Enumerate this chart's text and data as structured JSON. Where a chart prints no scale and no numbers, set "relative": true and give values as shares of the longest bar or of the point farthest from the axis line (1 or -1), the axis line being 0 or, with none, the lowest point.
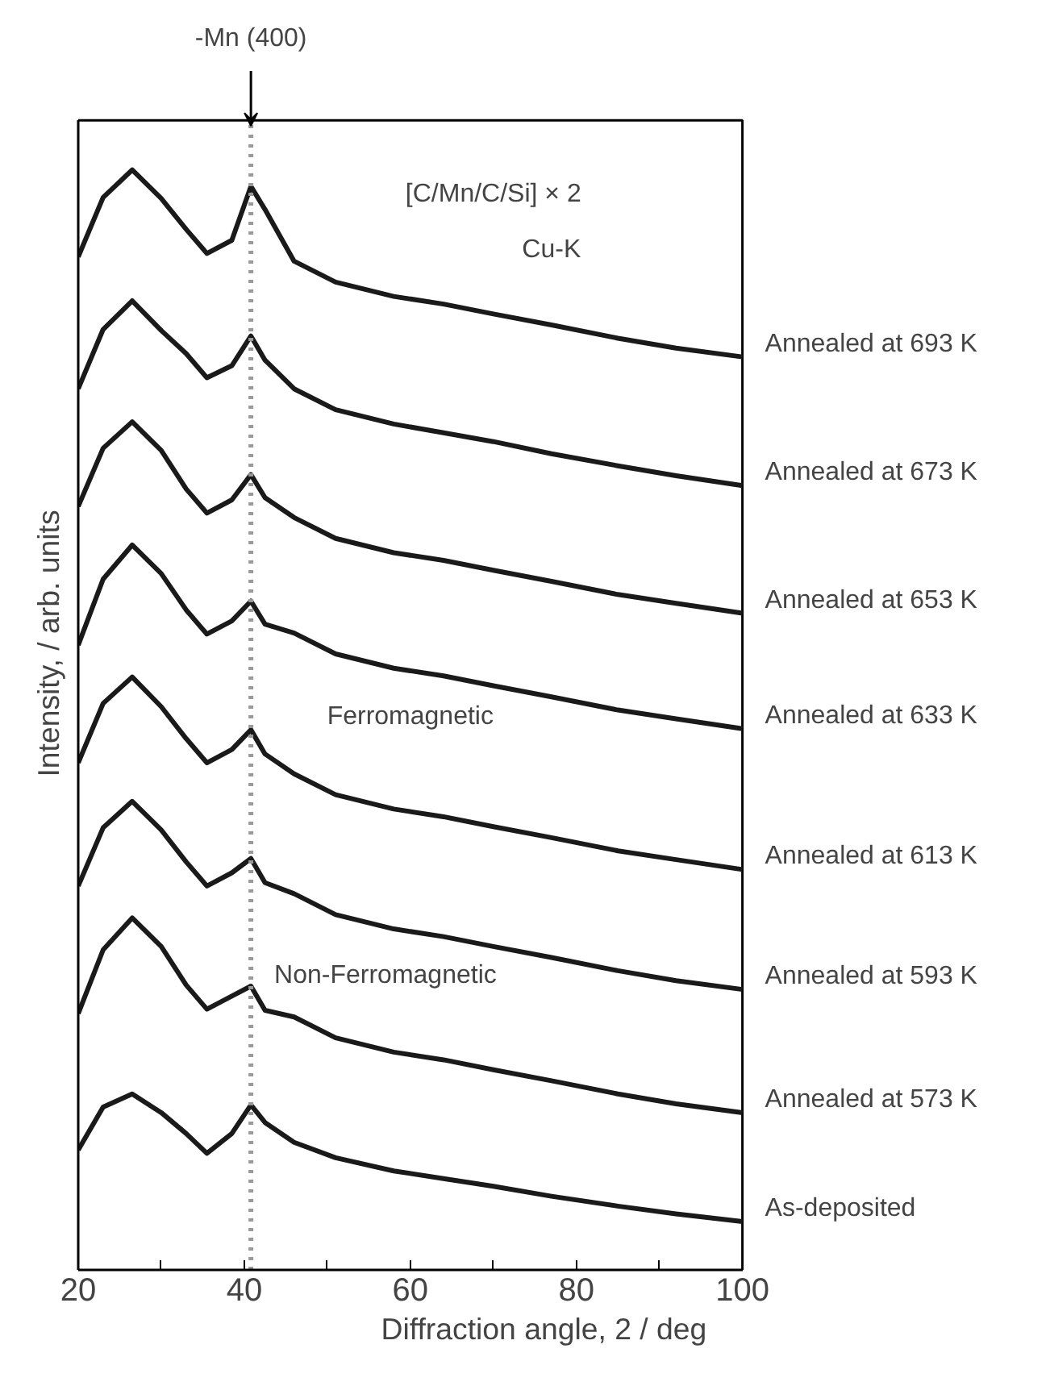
{
  "chart_data": {
    "type": "line",
    "relative": true,
    "xlabel": "Diffraction angle, 2    / deg",
    "ylabel": "Intensity, / arb. units",
    "x": [
      20,
      23,
      26.5,
      30,
      33,
      35.5,
      38.5,
      40.8,
      42.5,
      46,
      51,
      58,
      64,
      70,
      77,
      85,
      92,
      100
    ],
    "xlim": [
      20,
      100
    ],
    "xticks": [
      20,
      {
        "value": 30,
        "label": null
      },
      40,
      {
        "value": 50,
        "label": null
      },
      60,
      {
        "value": 70,
        "label": null
      },
      80,
      {
        "value": 90,
        "label": null
      },
      100
    ],
    "tick_labels": "x",
    "grid": false,
    "marker": "none",
    "line_style": "solid",
    "series": [
      {
        "name": "Annealed at 693 K",
        "color": "#1a1a1a",
        "values": [
          0.921,
          0.975,
          1.0,
          0.974,
          0.946,
          0.924,
          0.936,
          0.985,
          0.964,
          0.917,
          0.898,
          0.885,
          0.878,
          0.869,
          0.859,
          0.847,
          0.838,
          0.83
        ]
      },
      {
        "name": "Annealed at 673 K",
        "color": "#1a1a1a",
        "values": [
          0.801,
          0.855,
          0.881,
          0.854,
          0.833,
          0.811,
          0.822,
          0.849,
          0.827,
          0.801,
          0.782,
          0.769,
          0.761,
          0.753,
          0.742,
          0.731,
          0.722,
          0.713
        ]
      },
      {
        "name": "Annealed at 653 K",
        "color": "#1a1a1a",
        "values": [
          0.694,
          0.747,
          0.771,
          0.745,
          0.71,
          0.688,
          0.7,
          0.723,
          0.702,
          0.684,
          0.665,
          0.652,
          0.645,
          0.636,
          0.626,
          0.614,
          0.606,
          0.597
        ]
      },
      {
        "name": "Annealed at 633 K",
        "color": "#1a1a1a",
        "values": [
          0.568,
          0.628,
          0.659,
          0.633,
          0.6,
          0.578,
          0.59,
          0.608,
          0.587,
          0.579,
          0.56,
          0.547,
          0.54,
          0.531,
          0.521,
          0.509,
          0.501,
          0.492
        ]
      },
      {
        "name": "Annealed at 613 K",
        "color": "#1a1a1a",
        "values": [
          0.461,
          0.515,
          0.539,
          0.512,
          0.483,
          0.461,
          0.473,
          0.491,
          0.469,
          0.451,
          0.432,
          0.419,
          0.412,
          0.403,
          0.393,
          0.381,
          0.373,
          0.364
        ]
      },
      {
        "name": "Annealed at 593 K",
        "color": "#1a1a1a",
        "values": [
          0.349,
          0.402,
          0.426,
          0.4,
          0.371,
          0.349,
          0.361,
          0.374,
          0.352,
          0.342,
          0.323,
          0.31,
          0.303,
          0.294,
          0.284,
          0.272,
          0.263,
          0.255
        ]
      },
      {
        "name": "Annealed at 573 K",
        "color": "#1a1a1a",
        "values": [
          0.233,
          0.291,
          0.32,
          0.294,
          0.259,
          0.237,
          0.249,
          0.258,
          0.236,
          0.23,
          0.211,
          0.198,
          0.191,
          0.182,
          0.172,
          0.16,
          0.151,
          0.143
        ]
      },
      {
        "name": "As-deposited",
        "color": "#1a1a1a",
        "values": [
          0.109,
          0.148,
          0.16,
          0.143,
          0.124,
          0.106,
          0.124,
          0.15,
          0.134,
          0.116,
          0.102,
          0.09,
          0.083,
          0.076,
          0.067,
          0.058,
          0.051,
          0.044
        ]
      }
    ],
    "ref_lines": [
      {
        "axis": "x",
        "value": 40.8,
        "label": "-Mn (400)",
        "color": "#999999",
        "line_style": "dotted"
      }
    ],
    "annotations": [
      "[C/Mn/C/Si] × 2",
      "Cu-K",
      "Ferromagnetic",
      "Non-Ferromagnetic"
    ]
  }
}
